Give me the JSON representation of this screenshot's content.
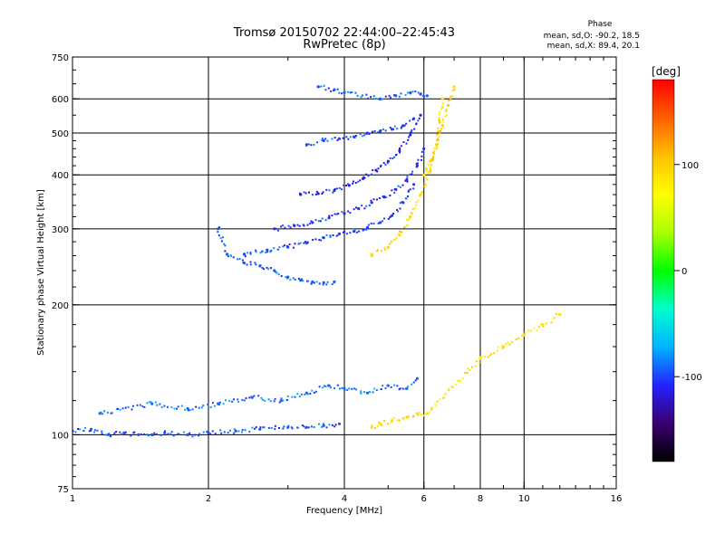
{
  "chart_data": {
    "type": "scatter",
    "title": "Tromsø 20150702 22:44:00–22:45:43",
    "subtitle": "RwPretec (8p)",
    "xlabel": "Frequency [MHz]",
    "ylabel": "Stationary phase Virtual Height [km]",
    "x_scale": "log",
    "y_scale": "log",
    "xlim": [
      1,
      16
    ],
    "ylim": [
      75,
      750
    ],
    "x_ticks": [
      1,
      2,
      4,
      6,
      8,
      10,
      16
    ],
    "x_tick_labels": [
      "1",
      "2",
      "4",
      "6",
      "8",
      "10",
      "16"
    ],
    "x_grid": [
      2,
      4,
      6,
      8,
      10
    ],
    "y_ticks": [
      75,
      100,
      200,
      300,
      400,
      500,
      600,
      750
    ],
    "y_tick_labels": [
      "75",
      "100",
      "200",
      "300",
      "400",
      "500",
      "600",
      "750"
    ],
    "y_grid": [
      100,
      200,
      300,
      400,
      500,
      600
    ],
    "grid": true,
    "stats": {
      "heading": "Phase",
      "o_line": "mean, sd,O: -90.2, 18.5",
      "x_line": "mean, sd,X:  89.4, 20.1"
    },
    "colorbar": {
      "label": "[deg]",
      "range": [
        -180,
        180
      ],
      "ticks": [
        100,
        0,
        -100
      ],
      "tick_labels": [
        "100",
        "0",
        "-100"
      ],
      "colormap": [
        "#000000",
        "#3a0070",
        "#2222ff",
        "#00b4ff",
        "#00ffcc",
        "#00ff00",
        "#aaff00",
        "#ffff00",
        "#ffc000",
        "#ff6000",
        "#ff0000"
      ]
    },
    "traces": [
      {
        "name": "",
        "phase": -95,
        "x": [
          1.0,
          1.1,
          1.2,
          1.3,
          1.4,
          1.5,
          1.6,
          1.8,
          2.0,
          2.3,
          2.6,
          3.0,
          3.3,
          3.6,
          3.9
        ],
        "y": [
          102,
          103,
          100,
          101,
          100,
          100,
          101,
          100,
          101,
          102,
          103,
          104,
          104,
          105,
          106
        ]
      },
      {
        "name": "",
        "phase": -90,
        "x": [
          1.15,
          1.5,
          1.8,
          2.1,
          2.5,
          2.9,
          3.3,
          3.7,
          4.0,
          4.5,
          5.0,
          5.5,
          5.8
        ],
        "y": [
          112,
          118,
          115,
          118,
          122,
          120,
          125,
          130,
          128,
          125,
          130,
          128,
          135
        ]
      },
      {
        "name": "",
        "phase": -95,
        "x": [
          2.1,
          2.2,
          2.4,
          2.6,
          2.8,
          3.0,
          3.2,
          3.4,
          3.6,
          3.8
        ],
        "y": [
          300,
          262,
          250,
          246,
          240,
          232,
          228,
          226,
          225,
          226
        ]
      },
      {
        "name": "",
        "phase": -100,
        "x": [
          2.4,
          2.7,
          3.0,
          3.3,
          3.6,
          3.9,
          4.2,
          4.5,
          4.8,
          5.1,
          5.4,
          5.7
        ],
        "y": [
          262,
          268,
          272,
          278,
          286,
          292,
          296,
          302,
          310,
          322,
          345,
          380
        ]
      },
      {
        "name": "",
        "phase": -105,
        "x": [
          2.8,
          3.1,
          3.4,
          3.7,
          4.0,
          4.3,
          4.6,
          4.9,
          5.2,
          5.5,
          5.8,
          6.0
        ],
        "y": [
          300,
          305,
          310,
          318,
          326,
          334,
          345,
          356,
          370,
          390,
          420,
          460
        ]
      },
      {
        "name": "",
        "phase": -110,
        "x": [
          3.2,
          3.5,
          3.8,
          4.1,
          4.4,
          4.7,
          5.0,
          5.3,
          5.6,
          5.9
        ],
        "y": [
          360,
          362,
          368,
          378,
          392,
          410,
          430,
          455,
          495,
          550
        ]
      },
      {
        "name": "",
        "phase": -100,
        "x": [
          3.3,
          3.6,
          3.9,
          4.2,
          4.5,
          4.8,
          5.1,
          5.4,
          5.7
        ],
        "y": [
          470,
          480,
          485,
          490,
          500,
          505,
          510,
          520,
          540
        ]
      },
      {
        "name": "",
        "phase": -95,
        "x": [
          3.5,
          3.8,
          4.0,
          4.8,
          5.2,
          5.6,
          5.9,
          6.1
        ],
        "y": [
          640,
          630,
          620,
          600,
          610,
          620,
          615,
          610
        ]
      },
      {
        "name": "",
        "phase": 95,
        "x": [
          4.6,
          5.0,
          5.3,
          5.6,
          5.9,
          6.2,
          6.4,
          6.5,
          6.6
        ],
        "y": [
          260,
          272,
          290,
          320,
          360,
          410,
          470,
          530,
          600
        ]
      },
      {
        "name": "",
        "phase": 95,
        "x": [
          6.0,
          6.2,
          6.4,
          6.6,
          6.8,
          7.0
        ],
        "y": [
          400,
          430,
          470,
          520,
          580,
          640
        ]
      },
      {
        "name": "",
        "phase": 90,
        "x": [
          4.6,
          4.8,
          5.1,
          5.5,
          5.8,
          6.1,
          8.0,
          9.0,
          10.0,
          11.0,
          12.0
        ],
        "y": [
          104,
          106,
          108,
          110,
          112,
          112,
          150,
          160,
          170,
          180,
          190
        ]
      }
    ]
  }
}
